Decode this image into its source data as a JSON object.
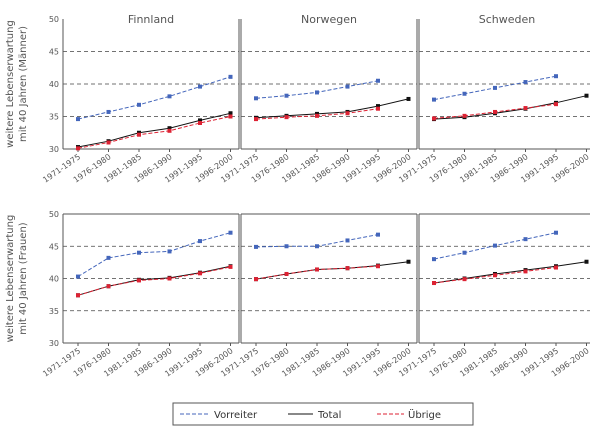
{
  "chart_data": {
    "type": "line",
    "categories": [
      "1971-1975",
      "1976-1980",
      "1981-1985",
      "1986-1990",
      "1991-1995",
      "1996-2000"
    ],
    "columns": [
      "Finnland",
      "Norwegen",
      "Schweden"
    ],
    "rows": [
      {
        "ylabel_line1": "weitere Lebenserwartung",
        "ylabel_line2": "mit 40 Jahren (Männer)"
      },
      {
        "ylabel_line1": "weitere Lebenserwartung",
        "ylabel_line2": "mit 40 Jahren (Frauen)"
      }
    ],
    "ylim": [
      30,
      50
    ],
    "yticks": [
      "30",
      "35",
      "40",
      "45",
      "50"
    ],
    "grid": "dashed-horizontal",
    "legend_placement": "bottom",
    "legend": [
      "Vorreiter",
      "Total",
      "Übrige"
    ],
    "colors": {
      "Vorreiter": "#4466bb",
      "Total": "#111111",
      "Übrige": "#dd2233"
    },
    "panels": [
      {
        "row": 0,
        "col": 0,
        "title": "Finnland",
        "series": [
          {
            "name": "Vorreiter",
            "values": [
              34.6,
              35.7,
              36.8,
              38.1,
              39.6,
              41.1
            ]
          },
          {
            "name": "Total",
            "values": [
              30.3,
              31.2,
              32.5,
              33.2,
              34.4,
              35.5
            ]
          },
          {
            "name": "Übrige",
            "values": [
              30.1,
              31.0,
              32.2,
              32.8,
              34.0,
              35.0
            ]
          }
        ]
      },
      {
        "row": 0,
        "col": 1,
        "title": "Norwegen",
        "series": [
          {
            "name": "Vorreiter",
            "values": [
              37.8,
              38.2,
              38.7,
              39.6,
              40.5,
              null
            ]
          },
          {
            "name": "Total",
            "values": [
              34.8,
              35.1,
              35.4,
              35.7,
              36.6,
              37.7
            ]
          },
          {
            "name": "Übrige",
            "values": [
              34.6,
              34.9,
              35.1,
              35.5,
              36.2,
              null
            ]
          }
        ]
      },
      {
        "row": 0,
        "col": 2,
        "title": "Schweden",
        "series": [
          {
            "name": "Vorreiter",
            "values": [
              37.6,
              38.5,
              39.4,
              40.3,
              41.2,
              null
            ]
          },
          {
            "name": "Total",
            "values": [
              34.6,
              34.9,
              35.5,
              36.2,
              37.1,
              38.2
            ]
          },
          {
            "name": "Übrige",
            "values": [
              34.7,
              35.1,
              35.7,
              36.3,
              36.9,
              null
            ]
          }
        ]
      },
      {
        "row": 1,
        "col": 0,
        "title": "",
        "series": [
          {
            "name": "Vorreiter",
            "values": [
              40.3,
              43.2,
              44.0,
              44.2,
              45.8,
              47.1
            ]
          },
          {
            "name": "Total",
            "values": [
              37.4,
              38.8,
              39.8,
              40.1,
              40.9,
              41.9
            ]
          },
          {
            "name": "Übrige",
            "values": [
              37.4,
              38.8,
              39.7,
              40.0,
              40.8,
              41.8
            ]
          }
        ]
      },
      {
        "row": 1,
        "col": 1,
        "title": "",
        "series": [
          {
            "name": "Vorreiter",
            "values": [
              44.9,
              45.0,
              45.0,
              45.9,
              46.8,
              null
            ]
          },
          {
            "name": "Total",
            "values": [
              39.9,
              40.7,
              41.4,
              41.6,
              42.0,
              42.6
            ]
          },
          {
            "name": "Übrige",
            "values": [
              39.9,
              40.7,
              41.4,
              41.6,
              41.9,
              null
            ]
          }
        ]
      },
      {
        "row": 1,
        "col": 2,
        "title": "",
        "series": [
          {
            "name": "Vorreiter",
            "values": [
              43.0,
              44.0,
              45.1,
              46.1,
              47.1,
              null
            ]
          },
          {
            "name": "Total",
            "values": [
              39.3,
              40.0,
              40.7,
              41.3,
              41.9,
              42.6
            ]
          },
          {
            "name": "Übrige",
            "values": [
              39.3,
              39.9,
              40.5,
              41.1,
              41.7,
              null
            ]
          }
        ]
      }
    ]
  }
}
